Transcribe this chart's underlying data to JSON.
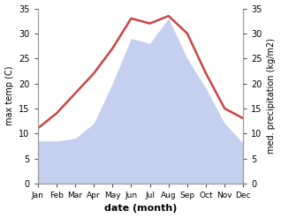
{
  "months": [
    "Jan",
    "Feb",
    "Mar",
    "Apr",
    "May",
    "Jun",
    "Jul",
    "Aug",
    "Sep",
    "Oct",
    "Nov",
    "Dec"
  ],
  "temperature": [
    11,
    14,
    18,
    22,
    27,
    33,
    32,
    33.5,
    30,
    22,
    15,
    13
  ],
  "precipitation": [
    8.5,
    8.5,
    9,
    12,
    20,
    29,
    28,
    33,
    25,
    19,
    12,
    8
  ],
  "temp_color": "#cc4444",
  "precip_color": "#c5d0f0",
  "ylim_left": [
    0,
    35
  ],
  "ylim_right": [
    0,
    35
  ],
  "yticks": [
    0,
    5,
    10,
    15,
    20,
    25,
    30,
    35
  ],
  "xlabel": "date (month)",
  "ylabel_left": "max temp (C)",
  "ylabel_right": "med. precipitation (kg/m2)",
  "temp_linewidth": 1.8,
  "bg_color": "#ffffff",
  "spine_color": "#999999",
  "tick_color": "#555555"
}
